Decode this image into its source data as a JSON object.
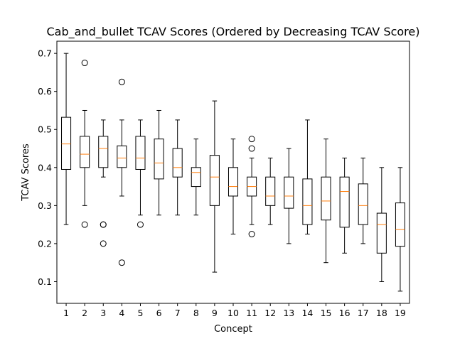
{
  "chart_data": {
    "type": "boxplot",
    "title": "Cab_and_bullet TCAV Scores (Ordered by Decreasing TCAV Score)",
    "xlabel": "Concept",
    "ylabel": "TCAV Scores",
    "xlim": [
      0.5,
      19.5
    ],
    "ylim": [
      0.043,
      0.732
    ],
    "yticks": [
      0.1,
      0.2,
      0.3,
      0.4,
      0.5,
      0.6,
      0.7
    ],
    "ytick_labels": [
      "0.1",
      "0.2",
      "0.3",
      "0.4",
      "0.5",
      "0.6",
      "0.7"
    ],
    "categories": [
      "1",
      "2",
      "3",
      "4",
      "5",
      "6",
      "7",
      "8",
      "9",
      "10",
      "11",
      "12",
      "13",
      "14",
      "15",
      "16",
      "17",
      "18",
      "19"
    ],
    "grid": false,
    "colors": {
      "box": "#000000",
      "median": "#ff7f0e",
      "outlier": "#000000"
    },
    "boxes": [
      {
        "label": "1",
        "whislo": 0.25,
        "q1": 0.395,
        "med": 0.462,
        "q3": 0.532,
        "whishi": 0.7,
        "fliers": []
      },
      {
        "label": "2",
        "whislo": 0.3,
        "q1": 0.4,
        "med": 0.435,
        "q3": 0.482,
        "whishi": 0.55,
        "fliers": [
          0.675,
          0.25
        ]
      },
      {
        "label": "3",
        "whislo": 0.375,
        "q1": 0.4,
        "med": 0.45,
        "q3": 0.482,
        "whishi": 0.525,
        "fliers": [
          0.25,
          0.25,
          0.2
        ]
      },
      {
        "label": "4",
        "whislo": 0.325,
        "q1": 0.4,
        "med": 0.425,
        "q3": 0.457,
        "whishi": 0.525,
        "fliers": [
          0.625,
          0.15
        ]
      },
      {
        "label": "5",
        "whislo": 0.275,
        "q1": 0.395,
        "med": 0.425,
        "q3": 0.482,
        "whishi": 0.525,
        "fliers": [
          0.25
        ]
      },
      {
        "label": "6",
        "whislo": 0.275,
        "q1": 0.37,
        "med": 0.412,
        "q3": 0.475,
        "whishi": 0.55,
        "fliers": []
      },
      {
        "label": "7",
        "whislo": 0.275,
        "q1": 0.375,
        "med": 0.4,
        "q3": 0.45,
        "whishi": 0.525,
        "fliers": []
      },
      {
        "label": "8",
        "whislo": 0.275,
        "q1": 0.35,
        "med": 0.387,
        "q3": 0.4,
        "whishi": 0.475,
        "fliers": []
      },
      {
        "label": "9",
        "whislo": 0.125,
        "q1": 0.3,
        "med": 0.375,
        "q3": 0.432,
        "whishi": 0.575,
        "fliers": []
      },
      {
        "label": "10",
        "whislo": 0.225,
        "q1": 0.325,
        "med": 0.35,
        "q3": 0.4,
        "whishi": 0.475,
        "fliers": []
      },
      {
        "label": "11",
        "whislo": 0.25,
        "q1": 0.325,
        "med": 0.35,
        "q3": 0.375,
        "whishi": 0.425,
        "fliers": [
          0.475,
          0.45,
          0.225
        ]
      },
      {
        "label": "12",
        "whislo": 0.25,
        "q1": 0.3,
        "med": 0.325,
        "q3": 0.375,
        "whishi": 0.425,
        "fliers": []
      },
      {
        "label": "13",
        "whislo": 0.2,
        "q1": 0.293,
        "med": 0.325,
        "q3": 0.375,
        "whishi": 0.45,
        "fliers": []
      },
      {
        "label": "14",
        "whislo": 0.225,
        "q1": 0.25,
        "med": 0.3,
        "q3": 0.37,
        "whishi": 0.525,
        "fliers": []
      },
      {
        "label": "15",
        "whislo": 0.15,
        "q1": 0.262,
        "med": 0.312,
        "q3": 0.375,
        "whishi": 0.475,
        "fliers": []
      },
      {
        "label": "16",
        "whislo": 0.175,
        "q1": 0.243,
        "med": 0.337,
        "q3": 0.375,
        "whishi": 0.425,
        "fliers": []
      },
      {
        "label": "17",
        "whislo": 0.2,
        "q1": 0.25,
        "med": 0.3,
        "q3": 0.357,
        "whishi": 0.425,
        "fliers": []
      },
      {
        "label": "18",
        "whislo": 0.1,
        "q1": 0.175,
        "med": 0.25,
        "q3": 0.28,
        "whishi": 0.4,
        "fliers": []
      },
      {
        "label": "19",
        "whislo": 0.075,
        "q1": 0.193,
        "med": 0.237,
        "q3": 0.307,
        "whishi": 0.4,
        "fliers": []
      }
    ]
  }
}
